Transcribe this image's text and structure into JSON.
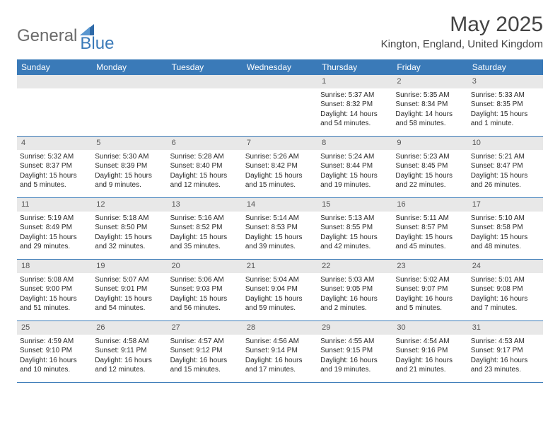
{
  "logo": {
    "word1": "General",
    "word2": "Blue"
  },
  "title": "May 2025",
  "location": "Kington, England, United Kingdom",
  "colors": {
    "header_bar": "#3a7ab8",
    "daynum_bg": "#e8e8e8",
    "week_border": "#3a7ab8",
    "logo_gray": "#6b6b6b",
    "logo_blue": "#3a7ab8",
    "text": "#2a2a2a"
  },
  "weekdays": [
    "Sunday",
    "Monday",
    "Tuesday",
    "Wednesday",
    "Thursday",
    "Friday",
    "Saturday"
  ],
  "weeks": [
    [
      {
        "n": "",
        "empty": true
      },
      {
        "n": "",
        "empty": true
      },
      {
        "n": "",
        "empty": true
      },
      {
        "n": "",
        "empty": true
      },
      {
        "n": "1",
        "sunrise": "Sunrise: 5:37 AM",
        "sunset": "Sunset: 8:32 PM",
        "daylight": "Daylight: 14 hours and 54 minutes."
      },
      {
        "n": "2",
        "sunrise": "Sunrise: 5:35 AM",
        "sunset": "Sunset: 8:34 PM",
        "daylight": "Daylight: 14 hours and 58 minutes."
      },
      {
        "n": "3",
        "sunrise": "Sunrise: 5:33 AM",
        "sunset": "Sunset: 8:35 PM",
        "daylight": "Daylight: 15 hours and 1 minute."
      }
    ],
    [
      {
        "n": "4",
        "sunrise": "Sunrise: 5:32 AM",
        "sunset": "Sunset: 8:37 PM",
        "daylight": "Daylight: 15 hours and 5 minutes."
      },
      {
        "n": "5",
        "sunrise": "Sunrise: 5:30 AM",
        "sunset": "Sunset: 8:39 PM",
        "daylight": "Daylight: 15 hours and 9 minutes."
      },
      {
        "n": "6",
        "sunrise": "Sunrise: 5:28 AM",
        "sunset": "Sunset: 8:40 PM",
        "daylight": "Daylight: 15 hours and 12 minutes."
      },
      {
        "n": "7",
        "sunrise": "Sunrise: 5:26 AM",
        "sunset": "Sunset: 8:42 PM",
        "daylight": "Daylight: 15 hours and 15 minutes."
      },
      {
        "n": "8",
        "sunrise": "Sunrise: 5:24 AM",
        "sunset": "Sunset: 8:44 PM",
        "daylight": "Daylight: 15 hours and 19 minutes."
      },
      {
        "n": "9",
        "sunrise": "Sunrise: 5:23 AM",
        "sunset": "Sunset: 8:45 PM",
        "daylight": "Daylight: 15 hours and 22 minutes."
      },
      {
        "n": "10",
        "sunrise": "Sunrise: 5:21 AM",
        "sunset": "Sunset: 8:47 PM",
        "daylight": "Daylight: 15 hours and 26 minutes."
      }
    ],
    [
      {
        "n": "11",
        "sunrise": "Sunrise: 5:19 AM",
        "sunset": "Sunset: 8:49 PM",
        "daylight": "Daylight: 15 hours and 29 minutes."
      },
      {
        "n": "12",
        "sunrise": "Sunrise: 5:18 AM",
        "sunset": "Sunset: 8:50 PM",
        "daylight": "Daylight: 15 hours and 32 minutes."
      },
      {
        "n": "13",
        "sunrise": "Sunrise: 5:16 AM",
        "sunset": "Sunset: 8:52 PM",
        "daylight": "Daylight: 15 hours and 35 minutes."
      },
      {
        "n": "14",
        "sunrise": "Sunrise: 5:14 AM",
        "sunset": "Sunset: 8:53 PM",
        "daylight": "Daylight: 15 hours and 39 minutes."
      },
      {
        "n": "15",
        "sunrise": "Sunrise: 5:13 AM",
        "sunset": "Sunset: 8:55 PM",
        "daylight": "Daylight: 15 hours and 42 minutes."
      },
      {
        "n": "16",
        "sunrise": "Sunrise: 5:11 AM",
        "sunset": "Sunset: 8:57 PM",
        "daylight": "Daylight: 15 hours and 45 minutes."
      },
      {
        "n": "17",
        "sunrise": "Sunrise: 5:10 AM",
        "sunset": "Sunset: 8:58 PM",
        "daylight": "Daylight: 15 hours and 48 minutes."
      }
    ],
    [
      {
        "n": "18",
        "sunrise": "Sunrise: 5:08 AM",
        "sunset": "Sunset: 9:00 PM",
        "daylight": "Daylight: 15 hours and 51 minutes."
      },
      {
        "n": "19",
        "sunrise": "Sunrise: 5:07 AM",
        "sunset": "Sunset: 9:01 PM",
        "daylight": "Daylight: 15 hours and 54 minutes."
      },
      {
        "n": "20",
        "sunrise": "Sunrise: 5:06 AM",
        "sunset": "Sunset: 9:03 PM",
        "daylight": "Daylight: 15 hours and 56 minutes."
      },
      {
        "n": "21",
        "sunrise": "Sunrise: 5:04 AM",
        "sunset": "Sunset: 9:04 PM",
        "daylight": "Daylight: 15 hours and 59 minutes."
      },
      {
        "n": "22",
        "sunrise": "Sunrise: 5:03 AM",
        "sunset": "Sunset: 9:05 PM",
        "daylight": "Daylight: 16 hours and 2 minutes."
      },
      {
        "n": "23",
        "sunrise": "Sunrise: 5:02 AM",
        "sunset": "Sunset: 9:07 PM",
        "daylight": "Daylight: 16 hours and 5 minutes."
      },
      {
        "n": "24",
        "sunrise": "Sunrise: 5:01 AM",
        "sunset": "Sunset: 9:08 PM",
        "daylight": "Daylight: 16 hours and 7 minutes."
      }
    ],
    [
      {
        "n": "25",
        "sunrise": "Sunrise: 4:59 AM",
        "sunset": "Sunset: 9:10 PM",
        "daylight": "Daylight: 16 hours and 10 minutes."
      },
      {
        "n": "26",
        "sunrise": "Sunrise: 4:58 AM",
        "sunset": "Sunset: 9:11 PM",
        "daylight": "Daylight: 16 hours and 12 minutes."
      },
      {
        "n": "27",
        "sunrise": "Sunrise: 4:57 AM",
        "sunset": "Sunset: 9:12 PM",
        "daylight": "Daylight: 16 hours and 15 minutes."
      },
      {
        "n": "28",
        "sunrise": "Sunrise: 4:56 AM",
        "sunset": "Sunset: 9:14 PM",
        "daylight": "Daylight: 16 hours and 17 minutes."
      },
      {
        "n": "29",
        "sunrise": "Sunrise: 4:55 AM",
        "sunset": "Sunset: 9:15 PM",
        "daylight": "Daylight: 16 hours and 19 minutes."
      },
      {
        "n": "30",
        "sunrise": "Sunrise: 4:54 AM",
        "sunset": "Sunset: 9:16 PM",
        "daylight": "Daylight: 16 hours and 21 minutes."
      },
      {
        "n": "31",
        "sunrise": "Sunrise: 4:53 AM",
        "sunset": "Sunset: 9:17 PM",
        "daylight": "Daylight: 16 hours and 23 minutes."
      }
    ]
  ]
}
